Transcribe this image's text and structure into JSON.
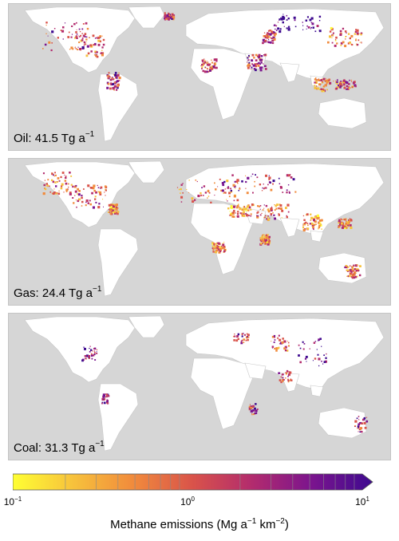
{
  "panels": [
    {
      "sector": "Oil",
      "value": "41.5",
      "unit": "Tg a",
      "exponent": "−1"
    },
    {
      "sector": "Gas",
      "value": "24.4",
      "unit": "Tg a",
      "exponent": "−1"
    },
    {
      "sector": "Coal",
      "value": "31.3",
      "unit": "Tg a",
      "exponent": "−1"
    }
  ],
  "colorbar": {
    "ticks": [
      {
        "base": "10",
        "exp": "−1"
      },
      {
        "base": "10",
        "exp": "0"
      },
      {
        "base": "10",
        "exp": "1"
      }
    ],
    "title": {
      "prefix": "Methane emissions (Mg a",
      "exp1": "−1",
      "mid": " km",
      "exp2": "−2",
      "suffix": ")"
    },
    "scale": "log",
    "range": [
      0.1,
      10
    ],
    "colors": [
      "#ffff33",
      "#f7c23c",
      "#f18b3c",
      "#d9534a",
      "#b22b6e",
      "#7a148e",
      "#3e0a8f"
    ]
  },
  "colors": {
    "ocean": "#d6d6d6",
    "land": "#ffffff",
    "borders": "#c8c8c8"
  }
}
